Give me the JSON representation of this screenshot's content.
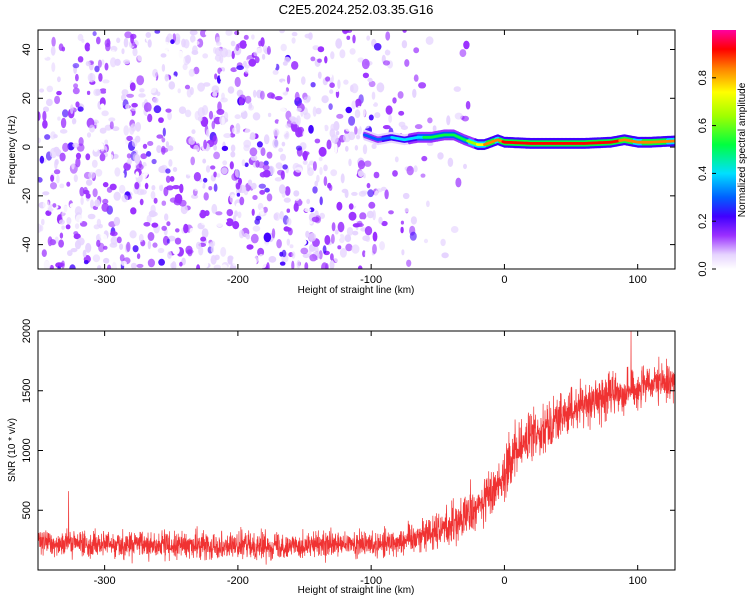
{
  "title": "C2E5.2024.252.03.35.G16",
  "chart_data": [
    {
      "type": "heatmap",
      "xlabel": "Height of straight line (km)",
      "ylabel": "Frequency (Hz)",
      "xlim": [
        -350,
        128
      ],
      "ylim": [
        -50,
        48
      ],
      "x_ticks": [
        -300,
        -200,
        -100,
        0,
        100
      ],
      "y_ticks": [
        -40,
        -20,
        0,
        20,
        40
      ],
      "colorbar": {
        "label": "Normalized spectral amplitude",
        "range": [
          0,
          1
        ],
        "ticks": [
          0.0,
          0.2,
          0.4,
          0.6,
          0.8
        ],
        "tick_labels": [
          "0.0",
          "0.2",
          "0.4",
          "0.6",
          "0.8"
        ],
        "colors": [
          "#ffffff",
          "#c9a0ff",
          "#8a00ff",
          "#0000ff",
          "#00ffff",
          "#00ff00",
          "#ffff00",
          "#ff0000",
          "#ff00ff"
        ]
      },
      "noise_region_x": [
        -350,
        -25
      ],
      "signal_line": {
        "x": [
          -105,
          -95,
          -85,
          -75,
          -65,
          -55,
          -45,
          -38,
          -30,
          -25,
          -20,
          -15,
          -10,
          -5,
          0,
          20,
          40,
          60,
          80,
          90,
          100,
          110,
          128
        ],
        "y": [
          5,
          3,
          4,
          3,
          4,
          4,
          5,
          5,
          3,
          2,
          1,
          1,
          2,
          3,
          2,
          1.5,
          1.5,
          1.5,
          2,
          3,
          2,
          2,
          2.5
        ],
        "amplitude": [
          0.3,
          0.35,
          0.4,
          0.45,
          0.5,
          0.55,
          0.6,
          0.55,
          0.6,
          0.7,
          0.75,
          0.85,
          0.9,
          0.85,
          0.95,
          0.95,
          0.95,
          0.95,
          0.95,
          0.9,
          0.85,
          0.9,
          0.85
        ]
      }
    },
    {
      "type": "line",
      "xlabel": "Height of straight line (km)",
      "ylabel": "SNR (10 * v/v)",
      "xlim": [
        -350,
        128
      ],
      "ylim": [
        0,
        2000
      ],
      "x_ticks": [
        -300,
        -200,
        -100,
        0,
        100
      ],
      "y_ticks": [
        500,
        1000,
        1500,
        2000
      ],
      "color": "#f03232",
      "trend": {
        "x": [
          -350,
          -300,
          -250,
          -200,
          -150,
          -100,
          -80,
          -60,
          -40,
          -30,
          -20,
          -10,
          0,
          10,
          20,
          30,
          40,
          60,
          80,
          100,
          128
        ],
        "y": [
          230,
          215,
          205,
          205,
          205,
          215,
          240,
          300,
          380,
          440,
          520,
          640,
          820,
          1000,
          1120,
          1200,
          1270,
          1390,
          1470,
          1520,
          1580
        ]
      },
      "noise_amplitude": {
        "x": [
          -350,
          -100,
          -60,
          -30,
          0,
          30,
          60,
          128
        ],
        "y": [
          110,
          110,
          140,
          180,
          230,
          200,
          180,
          160
        ]
      },
      "peaks": [
        {
          "x": -327,
          "y": 660
        },
        {
          "x": 95,
          "y": 2000
        }
      ],
      "samples": 3000
    }
  ]
}
